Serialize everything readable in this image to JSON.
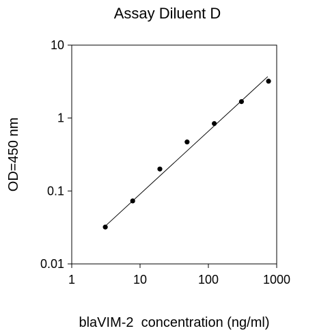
{
  "chart_data": {
    "type": "scatter",
    "title": "Assay Diluent D",
    "xlabel": "blaVIM-2  concentration (ng/ml)",
    "ylabel": "OD=450 nm",
    "x_scale": "log",
    "y_scale": "log",
    "xlim": [
      1,
      1000
    ],
    "ylim": [
      0.01,
      10
    ],
    "x_ticks": [
      {
        "value": 1,
        "label": "1"
      },
      {
        "value": 10,
        "label": "10"
      },
      {
        "value": 100,
        "label": "100"
      },
      {
        "value": 1000,
        "label": "1000"
      }
    ],
    "y_ticks": [
      {
        "value": 0.01,
        "label": "0.01"
      },
      {
        "value": 0.1,
        "label": "0.1"
      },
      {
        "value": 1,
        "label": "1"
      },
      {
        "value": 10,
        "label": "10"
      }
    ],
    "points": [
      {
        "x": 3.1,
        "y": 0.032
      },
      {
        "x": 7.8,
        "y": 0.073
      },
      {
        "x": 19.5,
        "y": 0.2
      },
      {
        "x": 48.8,
        "y": 0.47
      },
      {
        "x": 122,
        "y": 0.84
      },
      {
        "x": 305,
        "y": 1.68
      },
      {
        "x": 760,
        "y": 3.2
      }
    ],
    "fit_line": [
      {
        "x": 3.1,
        "y": 0.033
      },
      {
        "x": 740,
        "y": 3.7
      }
    ],
    "grid": false,
    "legend": "none",
    "colors": {
      "marker": "#000000",
      "line": "#000000",
      "axis": "#000000"
    }
  }
}
